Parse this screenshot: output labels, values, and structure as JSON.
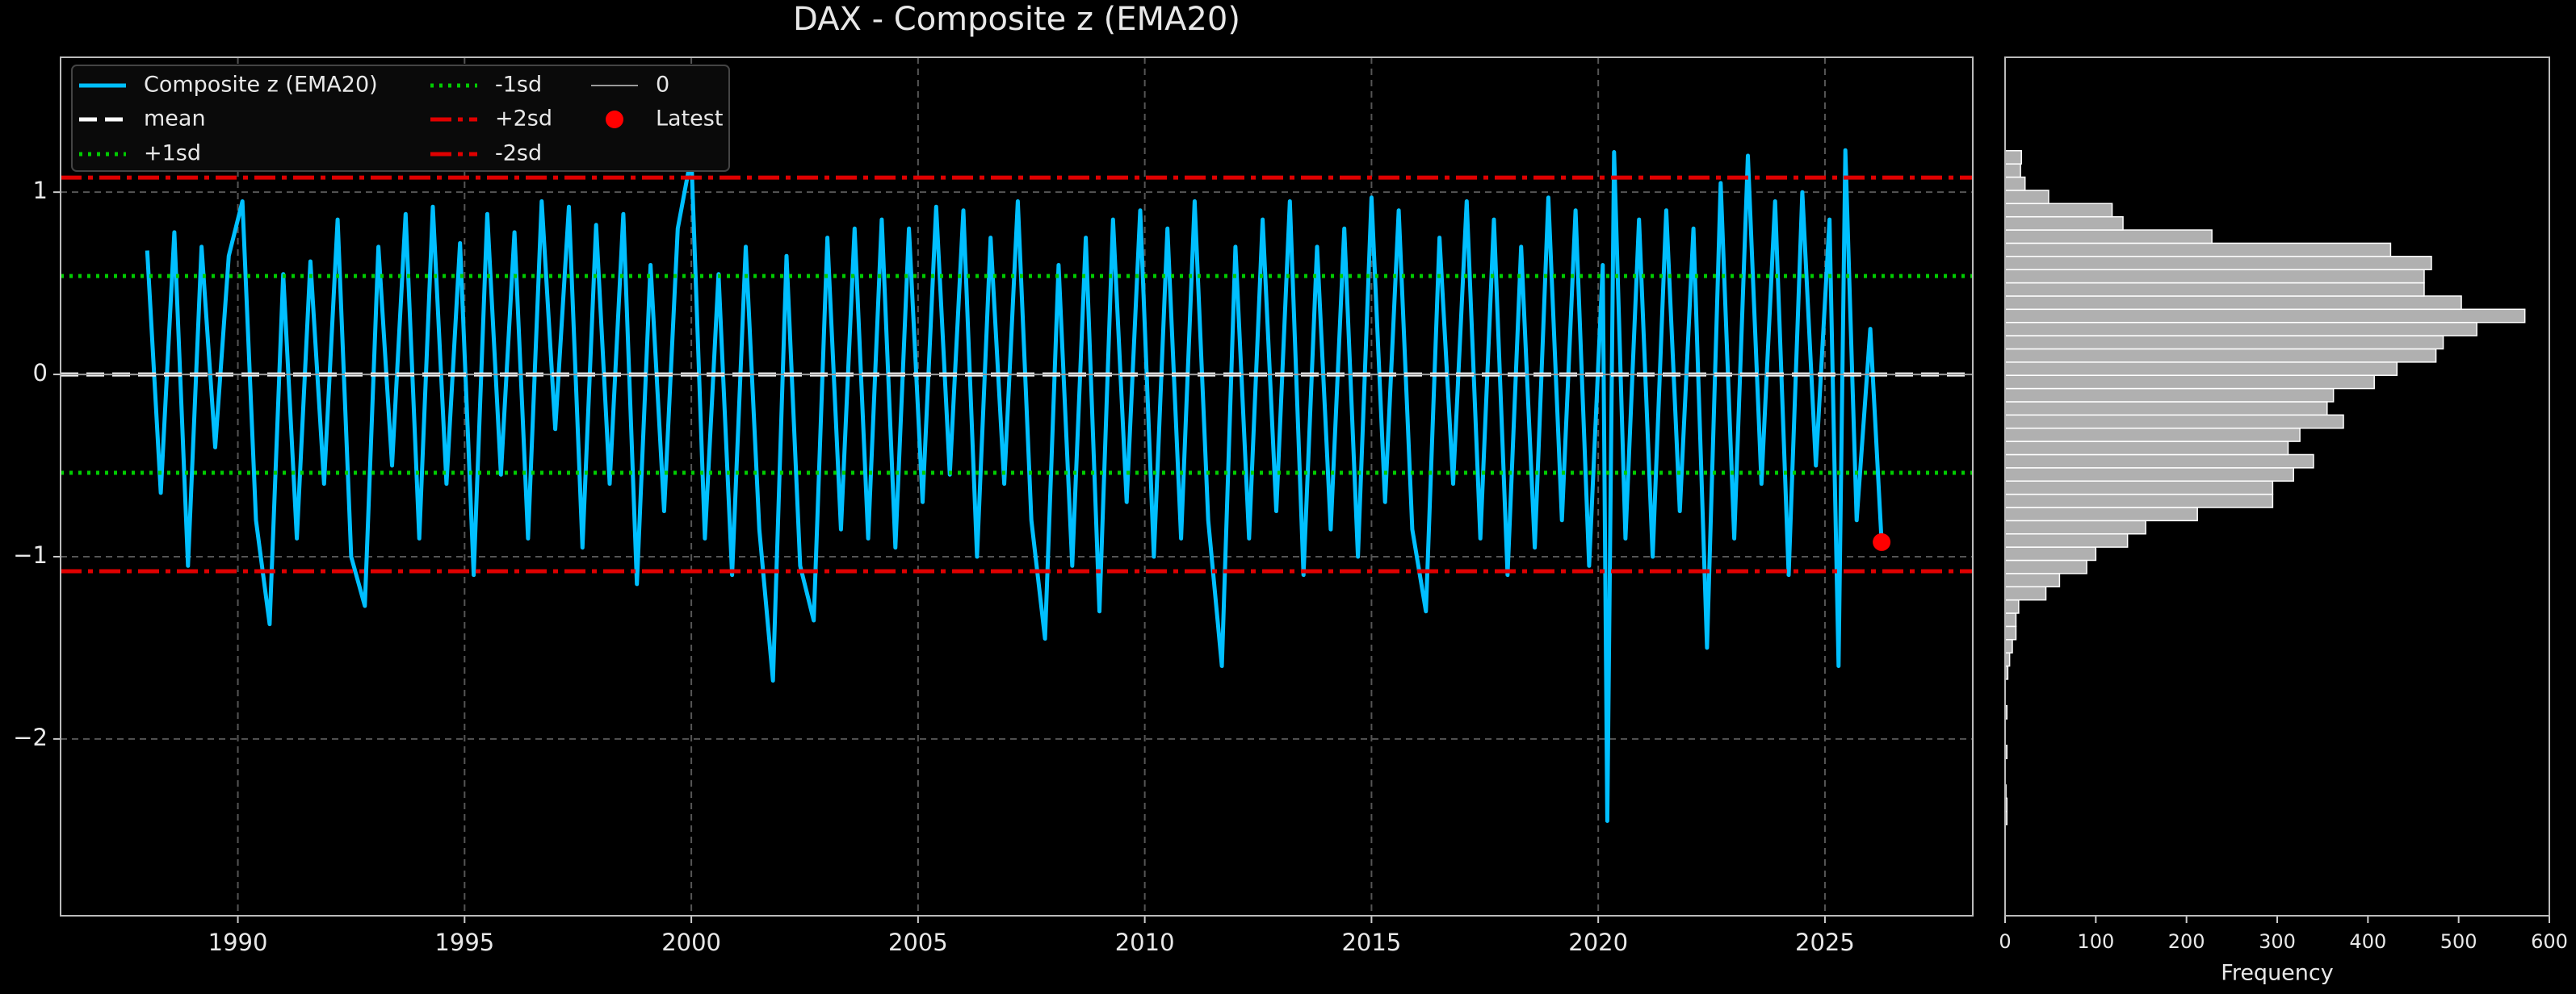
{
  "chart_data": [
    {
      "type": "line",
      "title": "DAX - Composite z (EMA20)",
      "xlim": [
        1986.09,
        2028.26
      ],
      "xticks": [
        1990,
        1995,
        2000,
        2005,
        2010,
        2015,
        2020,
        2025
      ],
      "ylim": [
        -2.97,
        1.74
      ],
      "yticks": [
        {
          "value": -2,
          "label": "−2"
        },
        {
          "value": -1,
          "label": "−1"
        },
        0,
        1
      ],
      "grid": true,
      "series": [
        {
          "name": "Composite z (EMA20)",
          "color": "#00bfff",
          "x": [
            1988.0,
            1988.3,
            1988.6,
            1988.9,
            1989.2,
            1989.5,
            1989.8,
            1990.1,
            1990.4,
            1990.7,
            1991.0,
            1991.3,
            1991.6,
            1991.9,
            1992.2,
            1992.5,
            1992.8,
            1993.1,
            1993.4,
            1993.7,
            1994.0,
            1994.3,
            1994.6,
            1994.9,
            1995.2,
            1995.5,
            1995.8,
            1996.1,
            1996.4,
            1996.7,
            1997.0,
            1997.3,
            1997.6,
            1997.9,
            1998.2,
            1998.5,
            1998.8,
            1999.1,
            1999.4,
            1999.7,
            2000.0,
            2000.3,
            2000.6,
            2000.9,
            2001.2,
            2001.5,
            2001.8,
            2002.1,
            2002.4,
            2002.7,
            2003.0,
            2003.3,
            2003.6,
            2003.9,
            2004.2,
            2004.5,
            2004.8,
            2005.1,
            2005.4,
            2005.7,
            2006.0,
            2006.3,
            2006.6,
            2006.9,
            2007.2,
            2007.5,
            2007.8,
            2008.1,
            2008.4,
            2008.7,
            2009.0,
            2009.3,
            2009.6,
            2009.9,
            2010.2,
            2010.5,
            2010.8,
            2011.1,
            2011.4,
            2011.7,
            2012.0,
            2012.3,
            2012.6,
            2012.9,
            2013.2,
            2013.5,
            2013.8,
            2014.1,
            2014.4,
            2014.7,
            2015.0,
            2015.3,
            2015.6,
            2015.9,
            2016.2,
            2016.5,
            2016.8,
            2017.1,
            2017.4,
            2017.7,
            2018.0,
            2018.3,
            2018.6,
            2018.9,
            2019.2,
            2019.5,
            2019.8,
            2020.1,
            2020.2,
            2020.35,
            2020.6,
            2020.9,
            2021.2,
            2021.5,
            2021.8,
            2022.1,
            2022.4,
            2022.7,
            2023.0,
            2023.3,
            2023.6,
            2023.9,
            2024.2,
            2024.5,
            2024.8,
            2025.1,
            2025.3,
            2025.45,
            2025.7,
            2026.0,
            2026.25
          ],
          "values": [
            0.68,
            -0.65,
            0.78,
            -1.05,
            0.7,
            -0.4,
            0.65,
            0.95,
            -0.8,
            -1.37,
            0.55,
            -0.9,
            0.62,
            -0.6,
            0.85,
            -1.0,
            -1.27,
            0.7,
            -0.5,
            0.88,
            -0.9,
            0.92,
            -0.6,
            0.72,
            -1.1,
            0.88,
            -0.55,
            0.78,
            -0.9,
            0.95,
            -0.3,
            0.92,
            -0.95,
            0.82,
            -0.6,
            0.88,
            -1.15,
            0.6,
            -0.75,
            0.8,
            1.2,
            -0.9,
            0.55,
            -1.1,
            0.7,
            -0.85,
            -1.68,
            0.65,
            -1.05,
            -1.35,
            0.75,
            -0.85,
            0.8,
            -0.9,
            0.85,
            -0.95,
            0.8,
            -0.7,
            0.92,
            -0.55,
            0.9,
            -1.0,
            0.75,
            -0.6,
            0.95,
            -0.8,
            -1.45,
            0.6,
            -1.05,
            0.75,
            -1.3,
            0.85,
            -0.7,
            0.9,
            -1.0,
            0.8,
            -0.9,
            0.95,
            -0.8,
            -1.6,
            0.7,
            -0.9,
            0.85,
            -0.75,
            0.95,
            -1.1,
            0.7,
            -0.85,
            0.8,
            -1.0,
            0.97,
            -0.7,
            0.9,
            -0.85,
            -1.3,
            0.75,
            -0.6,
            0.95,
            -0.9,
            0.85,
            -1.1,
            0.7,
            -0.95,
            0.97,
            -0.8,
            0.9,
            -1.05,
            0.6,
            -2.45,
            1.22,
            -0.9,
            0.85,
            -1.0,
            0.9,
            -0.75,
            0.8,
            -1.5,
            1.05,
            -0.9,
            1.2,
            -0.6,
            0.95,
            -1.1,
            1.0,
            -0.5,
            0.85,
            -1.6,
            1.23,
            -0.8,
            0.25,
            -0.92
          ]
        }
      ],
      "hlines": [
        {
          "name": "mean",
          "value": 0,
          "color": "#ffffff",
          "style": "dashed"
        },
        {
          "name": "+1sd",
          "value": 0.54,
          "color": "#00cc00",
          "style": "dotted"
        },
        {
          "name": "-1sd",
          "value": -0.54,
          "color": "#00cc00",
          "style": "dotted"
        },
        {
          "name": "+2sd",
          "value": 1.08,
          "color": "#e00000",
          "style": "dashdot"
        },
        {
          "name": "-2sd",
          "value": -1.08,
          "color": "#e00000",
          "style": "dashdot"
        },
        {
          "name": "0",
          "value": 0,
          "color": "#9a9a9a",
          "style": "solid"
        }
      ],
      "points": [
        {
          "name": "Latest",
          "x": 2026.25,
          "y": -0.92,
          "color": "#ff0000"
        }
      ],
      "legend": "upper left"
    },
    {
      "type": "histogram",
      "orientation": "horizontal",
      "xlabel": "Frequency",
      "color": "#b0b0b0",
      "xlim": [
        0,
        600
      ],
      "xticks": [
        0,
        100,
        200,
        300,
        400,
        500,
        600
      ],
      "ylim": [
        -2.97,
        1.74
      ],
      "bins": [
        -2.47,
        -2.3975,
        -2.325,
        -2.2525,
        -2.18,
        -2.1075,
        -2.035,
        -1.9625,
        -1.89,
        -1.8175,
        -1.745,
        -1.6725,
        -1.6,
        -1.5275,
        -1.455,
        -1.3825,
        -1.31,
        -1.2375,
        -1.165,
        -1.0925,
        -1.02,
        -0.9475,
        -0.875,
        -0.8025,
        -0.73,
        -0.6575,
        -0.585,
        -0.5125,
        -0.44,
        -0.3675,
        -0.295,
        -0.2225,
        -0.15,
        -0.0775,
        -0.005,
        0.0675,
        0.14,
        0.2125,
        0.285,
        0.3575,
        0.43,
        0.5025,
        0.575,
        0.6475,
        0.72,
        0.7925,
        0.865,
        0.9375,
        1.01,
        1.0825,
        1.155,
        1.2275
      ],
      "counts": [
        2,
        2,
        1,
        0,
        0,
        2,
        0,
        0,
        2,
        0,
        0,
        3,
        5,
        8,
        12,
        12,
        15,
        45,
        60,
        90,
        100,
        135,
        155,
        212,
        295,
        295,
        318,
        340,
        312,
        325,
        373,
        355,
        362,
        407,
        432,
        475,
        483,
        520,
        573,
        503,
        462,
        462,
        470,
        425,
        228,
        130,
        118,
        48,
        22,
        17,
        18
      ]
    }
  ]
}
